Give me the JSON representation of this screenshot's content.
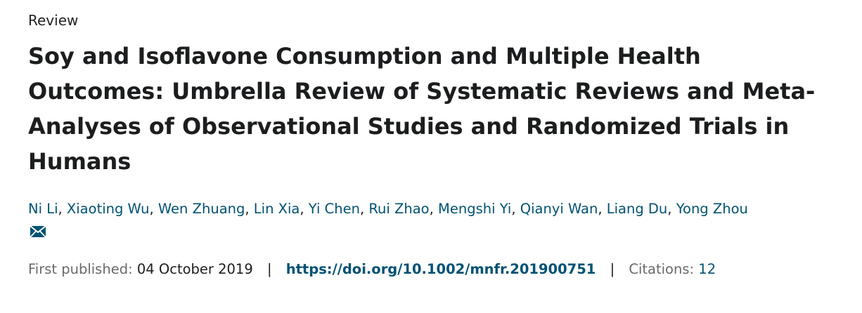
{
  "article": {
    "type": "Review",
    "title": "Soy and Isoflavone Consumption and Multiple Health Outcomes: Umbrella Review of Systematic Reviews and Meta-Analyses of Observational Studies and Randomized Trials in Humans"
  },
  "authors": [
    {
      "name": "Ni Li"
    },
    {
      "name": "Xiaoting Wu"
    },
    {
      "name": "Wen Zhuang"
    },
    {
      "name": "Lin Xia"
    },
    {
      "name": "Yi Chen"
    },
    {
      "name": "Rui Zhao"
    },
    {
      "name": "Mengshi Yi"
    },
    {
      "name": "Qianyi Wan"
    },
    {
      "name": "Liang Du"
    },
    {
      "name": "Yong Zhou"
    }
  ],
  "author_separator": ",",
  "icons": {
    "contact": "envelope-icon"
  },
  "colors": {
    "link": "#005274",
    "muted": "#6a6a6a",
    "text": "#1c1d1e"
  },
  "meta": {
    "published_label": "First published:",
    "published_date": "04 October 2019",
    "separator": "|",
    "doi": "https://doi.org/10.1002/mnfr.201900751",
    "citations_label": "Citations:",
    "citations_count": "12"
  }
}
